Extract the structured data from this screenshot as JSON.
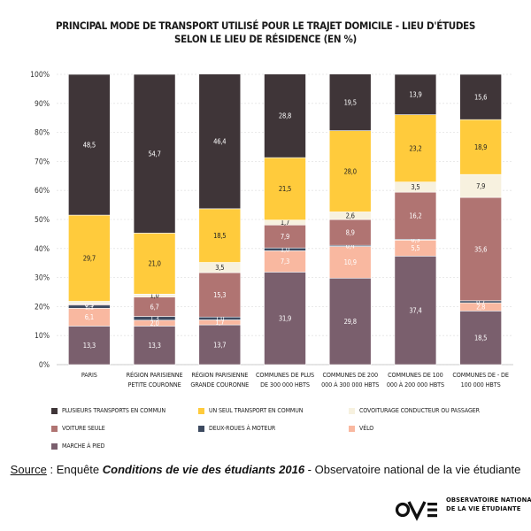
{
  "title": {
    "line1": "PRINCIPAL MODE DE TRANSPORT UTILISÉ POUR LE TRAJET DOMICILE - LIEU D'ÉTUDES",
    "line2": "SELON LE LIEU DE RÉSIDENCE (EN %)"
  },
  "chart_data": {
    "type": "bar",
    "stacked": true,
    "ylim": [
      0,
      100
    ],
    "yticks": [
      "0%",
      "10%",
      "20%",
      "30%",
      "40%",
      "50%",
      "60%",
      "70%",
      "80%",
      "90%",
      "100%"
    ],
    "grid": true,
    "legend_position": "bottom",
    "categories": [
      [
        "PARIS"
      ],
      [
        "RÉGION PARISIENNE",
        "PETITE COURONNE"
      ],
      [
        "RÉGION PARISIENNE",
        "GRANDE COURONNE"
      ],
      [
        "COMMUNES DE PLUS",
        "DE 300 000 HBTS"
      ],
      [
        "COMMUNES DE 200",
        "000 À 300 000 HBTS"
      ],
      [
        "COMMUNES DE 100",
        "000 À 200 000 HBTS"
      ],
      [
        "COMMUNES DE - DE",
        "100 000 HBTS"
      ]
    ],
    "series": [
      {
        "name": "MARCHE À PIED",
        "color": "#7a5f6d",
        "label_color": "#ffffff",
        "values": [
          13.3,
          13.3,
          13.7,
          31.9,
          29.8,
          37.4,
          18.5
        ],
        "labels": [
          "13,3",
          "13,3",
          "13,7",
          "31,9",
          "29,8",
          "37,4",
          "18,5"
        ]
      },
      {
        "name": "VÉLO",
        "color": "#f9b8a0",
        "label_color": "#ffffff",
        "values": [
          6.1,
          2.0,
          1.7,
          7.3,
          10.9,
          5.5,
          2.8
        ],
        "labels": [
          "6,1",
          "2,0",
          "1,7",
          "7,3",
          "10,9",
          "5,5",
          "2,8"
        ]
      },
      {
        "name": "DEUX-ROUES À MOTEUR",
        "color": "#3d4a60",
        "label_color": "#ffffff",
        "values": [
          1.1,
          1.3,
          1.0,
          1.0,
          0.4,
          0.3,
          0.7
        ],
        "labels": [
          "1,1",
          "1,3",
          "1,0",
          "1,0",
          "0,4",
          "0,3",
          "0,7"
        ]
      },
      {
        "name": "VOITURE SEULE",
        "color": "#b07472",
        "label_color": "#ffffff",
        "values": [
          0.3,
          6.7,
          15.3,
          7.9,
          8.9,
          16.2,
          35.6
        ],
        "labels": [
          "0,3",
          "6,7",
          "15,3",
          "7,9",
          "8,9",
          "16,2",
          "35,6"
        ]
      },
      {
        "name": "COVOITURAGE CONDUCTEUR OU PASSAGER",
        "color": "#f7f1df",
        "label_color": "#222222",
        "values": [
          1.0,
          1.0,
          3.5,
          1.7,
          2.6,
          3.5,
          7.9
        ],
        "labels": [
          "",
          "1,0",
          "3,5",
          "1,7",
          "2,6",
          "3,5",
          "7,9"
        ]
      },
      {
        "name": "UN SEUL TRANSPORT EN COMMUN",
        "color": "#ffcb3c",
        "label_color": "#222222",
        "values": [
          29.7,
          21.0,
          18.5,
          21.5,
          28.0,
          23.2,
          18.9
        ],
        "labels": [
          "29,7",
          "21,0",
          "18,5",
          "21,5",
          "28,0",
          "23,2",
          "18,9"
        ]
      },
      {
        "name": "PLUSIEURS TRANSPORTS EN COMMUN",
        "color": "#3f3538",
        "label_color": "#ffffff",
        "values": [
          48.5,
          54.7,
          46.4,
          28.8,
          19.5,
          13.9,
          15.6
        ],
        "labels": [
          "48,5",
          "54,7",
          "46,4",
          "28,8",
          "19,5",
          "13,9",
          "15,6"
        ]
      }
    ]
  },
  "legend": [
    {
      "label": "PLUSIEURS TRANSPORTS EN COMMUN",
      "color": "#3f3538"
    },
    {
      "label": "UN SEUL TRANSPORT EN COMMUN",
      "color": "#ffcb3c"
    },
    {
      "label": "COVOITURAGE CONDUCTEUR OU PASSAGER",
      "color": "#f7f1df"
    },
    {
      "label": "VOITURE SEULE",
      "color": "#b07472"
    },
    {
      "label": "DEUX-ROUES À MOTEUR",
      "color": "#3d4a60"
    },
    {
      "label": "VÉLO",
      "color": "#f9b8a0"
    },
    {
      "label": "MARCHE À PIED",
      "color": "#7a5f6d"
    }
  ],
  "source": {
    "prefix": "Source",
    "sep": " : Enquête ",
    "survey": "Conditions de vie des étudiants 2016",
    "suffix": " - Observatoire national de la vie étudiante"
  },
  "logo": {
    "line1": "OBSERVATOIRE NATIONAL",
    "line2": "DE LA VIE ÉTUDIANTE"
  }
}
